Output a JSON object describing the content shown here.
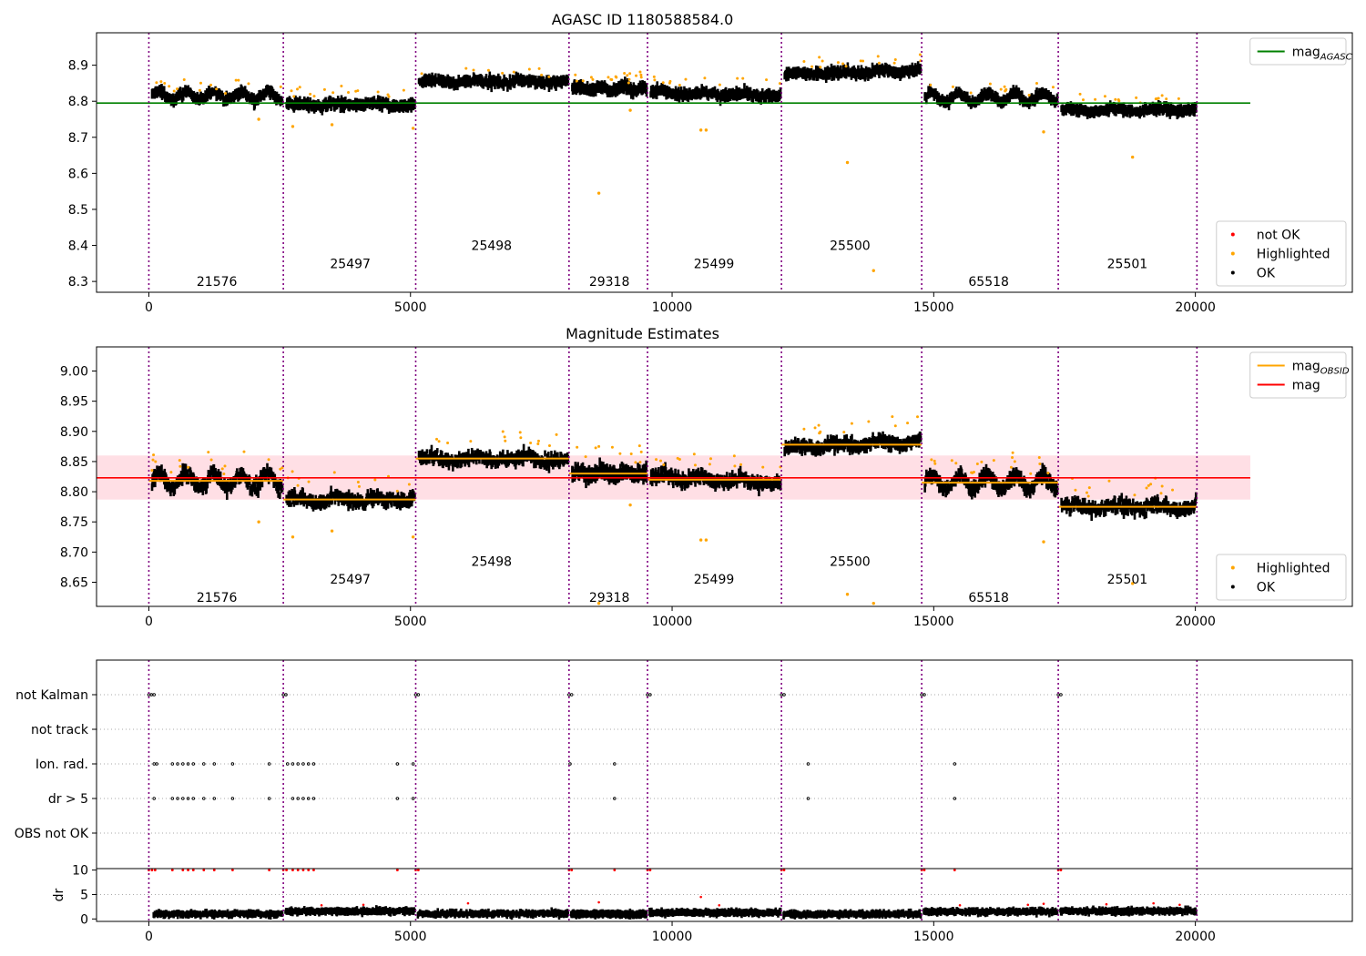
{
  "chart_data": [
    {
      "type": "scatter",
      "title": "AGASC ID 1180588584.0",
      "xlim": [
        -1000,
        23000
      ],
      "ylim": [
        8.27,
        8.99
      ],
      "xticks": [
        0,
        5000,
        10000,
        15000,
        20000
      ],
      "yticks": [
        8.3,
        8.4,
        8.5,
        8.6,
        8.7,
        8.8,
        8.9
      ],
      "ytick_decimals": 1,
      "obsid_boundaries": [
        0,
        2570,
        5100,
        8030,
        9530,
        12090,
        14770,
        17380,
        20030
      ],
      "obsids": [
        {
          "label": "21576",
          "x": 1300,
          "y": 8.3,
          "level": 8.815
        },
        {
          "label": "25497",
          "x": 3850,
          "y": 8.35,
          "level": 8.79
        },
        {
          "label": "25498",
          "x": 6550,
          "y": 8.4,
          "level": 8.855
        },
        {
          "label": "29318",
          "x": 8800,
          "y": 8.3,
          "level": 8.835
        },
        {
          "label": "25499",
          "x": 10800,
          "y": 8.35,
          "level": 8.82
        },
        {
          "label": "25500",
          "x": 13400,
          "y": 8.4,
          "level": 8.88
        },
        {
          "label": "65518",
          "x": 16050,
          "y": 8.3,
          "level": 8.81
        },
        {
          "label": "25501",
          "x": 18700,
          "y": 8.35,
          "level": 8.775
        }
      ],
      "outliers": [
        {
          "x": 8600,
          "y": 8.545
        },
        {
          "x": 13350,
          "y": 8.63
        },
        {
          "x": 13850,
          "y": 8.33
        },
        {
          "x": 10550,
          "y": 8.72
        },
        {
          "x": 10650,
          "y": 8.72
        },
        {
          "x": 18800,
          "y": 8.645
        },
        {
          "x": 17100,
          "y": 8.715
        },
        {
          "x": 2100,
          "y": 8.75
        },
        {
          "x": 2750,
          "y": 8.73
        },
        {
          "x": 3500,
          "y": 8.735
        },
        {
          "x": 9200,
          "y": 8.775
        },
        {
          "x": 5050,
          "y": 8.725
        }
      ],
      "hlines": [
        {
          "name": "mag_AGASC",
          "y": 8.795,
          "color": "#008000",
          "x_range": [
            -1000,
            21050
          ]
        }
      ],
      "legend_upper": [
        {
          "name": "mag",
          "sub": "AGASC",
          "color": "#008000",
          "marker": "line"
        }
      ],
      "legend_lower": [
        {
          "name": "not OK",
          "color": "#ff0000",
          "marker": "dot"
        },
        {
          "name": "Highlighted",
          "color": "#ffa500",
          "marker": "dot"
        },
        {
          "name": "OK",
          "color": "#000000",
          "marker": "dot"
        }
      ],
      "colors": {
        "ok": "#000000",
        "highlighted": "#ffa500",
        "boundary": "#800080"
      }
    },
    {
      "type": "scatter",
      "title": "Magnitude Estimates",
      "xlim": [
        -1000,
        23000
      ],
      "ylim": [
        8.61,
        9.04
      ],
      "xticks": [
        0,
        5000,
        10000,
        15000,
        20000
      ],
      "yticks": [
        8.65,
        8.7,
        8.75,
        8.8,
        8.85,
        8.9,
        8.95,
        9.0
      ],
      "ytick_decimals": 2,
      "obsid_boundaries": [
        0,
        2570,
        5100,
        8030,
        9530,
        12090,
        14770,
        17380,
        20030
      ],
      "obsids": [
        {
          "label": "21576",
          "x": 1300,
          "y": 8.625,
          "level": 8.818
        },
        {
          "label": "25497",
          "x": 3850,
          "y": 8.655,
          "level": 8.787
        },
        {
          "label": "25498",
          "x": 6550,
          "y": 8.685,
          "level": 8.855
        },
        {
          "label": "29318",
          "x": 8800,
          "y": 8.625,
          "level": 8.83
        },
        {
          "label": "25499",
          "x": 10800,
          "y": 8.655,
          "level": 8.82
        },
        {
          "label": "25500",
          "x": 13400,
          "y": 8.685,
          "level": 8.878
        },
        {
          "label": "65518",
          "x": 16050,
          "y": 8.625,
          "level": 8.815
        },
        {
          "label": "25501",
          "x": 18700,
          "y": 8.655,
          "level": 8.775
        }
      ],
      "outliers": [
        {
          "x": 8600,
          "y": 8.615
        },
        {
          "x": 13350,
          "y": 8.63
        },
        {
          "x": 13850,
          "y": 8.615
        },
        {
          "x": 10550,
          "y": 8.72
        },
        {
          "x": 10650,
          "y": 8.72
        },
        {
          "x": 18800,
          "y": 8.648
        },
        {
          "x": 17100,
          "y": 8.717
        },
        {
          "x": 2100,
          "y": 8.75
        },
        {
          "x": 2750,
          "y": 8.725
        },
        {
          "x": 3500,
          "y": 8.735
        },
        {
          "x": 9200,
          "y": 8.778
        },
        {
          "x": 5050,
          "y": 8.725
        }
      ],
      "band": {
        "y0": 8.787,
        "y1": 8.86,
        "color": "#ffc0cb",
        "x_range": [
          -1000,
          21050
        ]
      },
      "hlines": [
        {
          "name": "mag",
          "y": 8.823,
          "color": "#ff0000",
          "x_range": [
            -1000,
            21050
          ]
        }
      ],
      "obsid_mag_color": "#ffa500",
      "legend_upper": [
        {
          "name": "mag",
          "sub": "OBSID",
          "color": "#ffa500",
          "marker": "line"
        },
        {
          "name": "mag",
          "sub": "",
          "color": "#ff0000",
          "marker": "line"
        }
      ],
      "legend_lower": [
        {
          "name": "Highlighted",
          "color": "#ffa500",
          "marker": "dot"
        },
        {
          "name": "OK",
          "color": "#000000",
          "marker": "dot"
        }
      ],
      "colors": {
        "ok": "#000000",
        "highlighted": "#ffa500",
        "boundary": "#800080"
      }
    },
    {
      "type": "scatter",
      "title": "",
      "xlim": [
        -1000,
        23000
      ],
      "categories": [
        "not Kalman",
        "not track",
        "Ion. rad.",
        "dr > 5",
        "OBS not OK"
      ],
      "obsid_boundaries": [
        0,
        2570,
        5100,
        8030,
        9530,
        12090,
        14770,
        17380,
        20030
      ],
      "flags": {
        "not Kalman": [
          0,
          50,
          100,
          2570,
          2620,
          5100,
          5150,
          8030,
          8080,
          9530,
          9580,
          12090,
          12140,
          14770,
          14820,
          17380,
          17430
        ],
        "not track": [],
        "Ion. rad.": [
          100,
          150,
          450,
          550,
          650,
          750,
          850,
          1050,
          1250,
          1600,
          2300,
          2650,
          2750,
          2850,
          2950,
          3050,
          3150,
          4750,
          5050,
          8050,
          8900,
          12600,
          15400
        ],
        "dr > 5": [
          100,
          450,
          550,
          650,
          750,
          850,
          1050,
          1250,
          1600,
          2300,
          2750,
          2850,
          2950,
          3050,
          3150,
          4750,
          5050,
          8900,
          12600,
          15400
        ],
        "OBS not OK": []
      },
      "colors": {
        "flag": "#000000",
        "grid": "#aaaaaa",
        "boundary": "#800080"
      }
    },
    {
      "type": "scatter",
      "title": "",
      "xlim": [
        -1000,
        23000
      ],
      "ylim": [
        -0.5,
        10.3
      ],
      "ylabel": "dr",
      "yticks": [
        0,
        5,
        10
      ],
      "xticks": [
        0,
        5000,
        10000,
        15000,
        20000
      ],
      "obsid_boundaries": [
        0,
        2570,
        5100,
        8030,
        9530,
        12090,
        14770,
        17380,
        20030
      ],
      "segments": [
        {
          "x0": 50,
          "x1": 2570,
          "base": 1.0
        },
        {
          "x0": 2570,
          "x1": 5100,
          "base": 1.6
        },
        {
          "x0": 5100,
          "x1": 8030,
          "base": 1.1
        },
        {
          "x0": 8030,
          "x1": 9530,
          "base": 1.0
        },
        {
          "x0": 9530,
          "x1": 12090,
          "base": 1.3
        },
        {
          "x0": 12090,
          "x1": 14770,
          "base": 1.0
        },
        {
          "x0": 14770,
          "x1": 17380,
          "base": 1.5
        },
        {
          "x0": 17380,
          "x1": 20030,
          "base": 1.6
        }
      ],
      "clipped": [
        0,
        60,
        120,
        450,
        650,
        750,
        850,
        1050,
        1250,
        1600,
        2300,
        2570,
        2630,
        2750,
        2850,
        2950,
        3050,
        3150,
        4750,
        5100,
        5150,
        8030,
        8080,
        8900,
        9530,
        9580,
        12090,
        12140,
        14770,
        14820,
        15400,
        17380,
        17430
      ],
      "red_points": [
        {
          "x": 6100,
          "y": 3.2
        },
        {
          "x": 8600,
          "y": 3.4
        },
        {
          "x": 10550,
          "y": 4.5
        },
        {
          "x": 10900,
          "y": 2.8
        },
        {
          "x": 15500,
          "y": 2.8
        },
        {
          "x": 16800,
          "y": 2.9
        },
        {
          "x": 17100,
          "y": 3.1
        },
        {
          "x": 18300,
          "y": 3.0
        },
        {
          "x": 19200,
          "y": 3.2
        },
        {
          "x": 19700,
          "y": 2.9
        },
        {
          "x": 3300,
          "y": 2.8
        },
        {
          "x": 4100,
          "y": 2.9
        }
      ],
      "colors": {
        "ok": "#000000",
        "not_ok": "#ff0000",
        "boundary": "#800080",
        "grid": "#aaaaaa"
      }
    }
  ]
}
